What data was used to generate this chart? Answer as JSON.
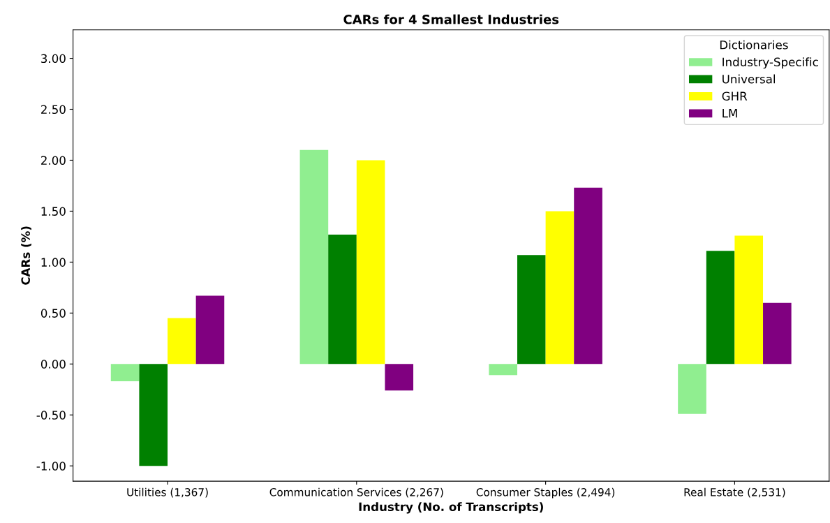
{
  "chart_data": {
    "type": "bar",
    "title": "CARs for 4 Smallest Industries",
    "xlabel": "Industry (No. of Transcripts)",
    "ylabel": "CARs (%)",
    "legend_title": "Dictionaries",
    "legend": "top right",
    "grid": false,
    "categories": [
      "Utilities (1,367)",
      "Communication Services (2,267)",
      "Consumer Staples (2,494)",
      "Real Estate (2,531)"
    ],
    "series": [
      {
        "name": "Industry-Specific",
        "color": "#90ee90",
        "values": [
          -0.17,
          2.1,
          -0.11,
          -0.49
        ]
      },
      {
        "name": "Universal",
        "color": "#008000",
        "values": [
          -1.0,
          1.27,
          1.07,
          1.11
        ]
      },
      {
        "name": "GHR",
        "color": "#ffff00",
        "values": [
          0.45,
          2.0,
          1.5,
          1.26
        ]
      },
      {
        "name": "LM",
        "color": "#800080",
        "values": [
          0.67,
          -0.26,
          1.73,
          0.6
        ]
      }
    ],
    "ylim": [
      -1.15,
      3.28
    ],
    "yticks": [
      {
        "value": -1,
        "label": "-1.00"
      },
      {
        "value": -0.5,
        "label": "-0.50"
      },
      {
        "value": 0,
        "label": "0.00"
      },
      {
        "value": 0.5,
        "label": "0.50"
      },
      {
        "value": 1,
        "label": "1.00"
      },
      {
        "value": 1.5,
        "label": "1.50"
      },
      {
        "value": 2,
        "label": "2.00"
      },
      {
        "value": 2.5,
        "label": "2.50"
      },
      {
        "value": 3,
        "label": "3.00"
      }
    ]
  }
}
